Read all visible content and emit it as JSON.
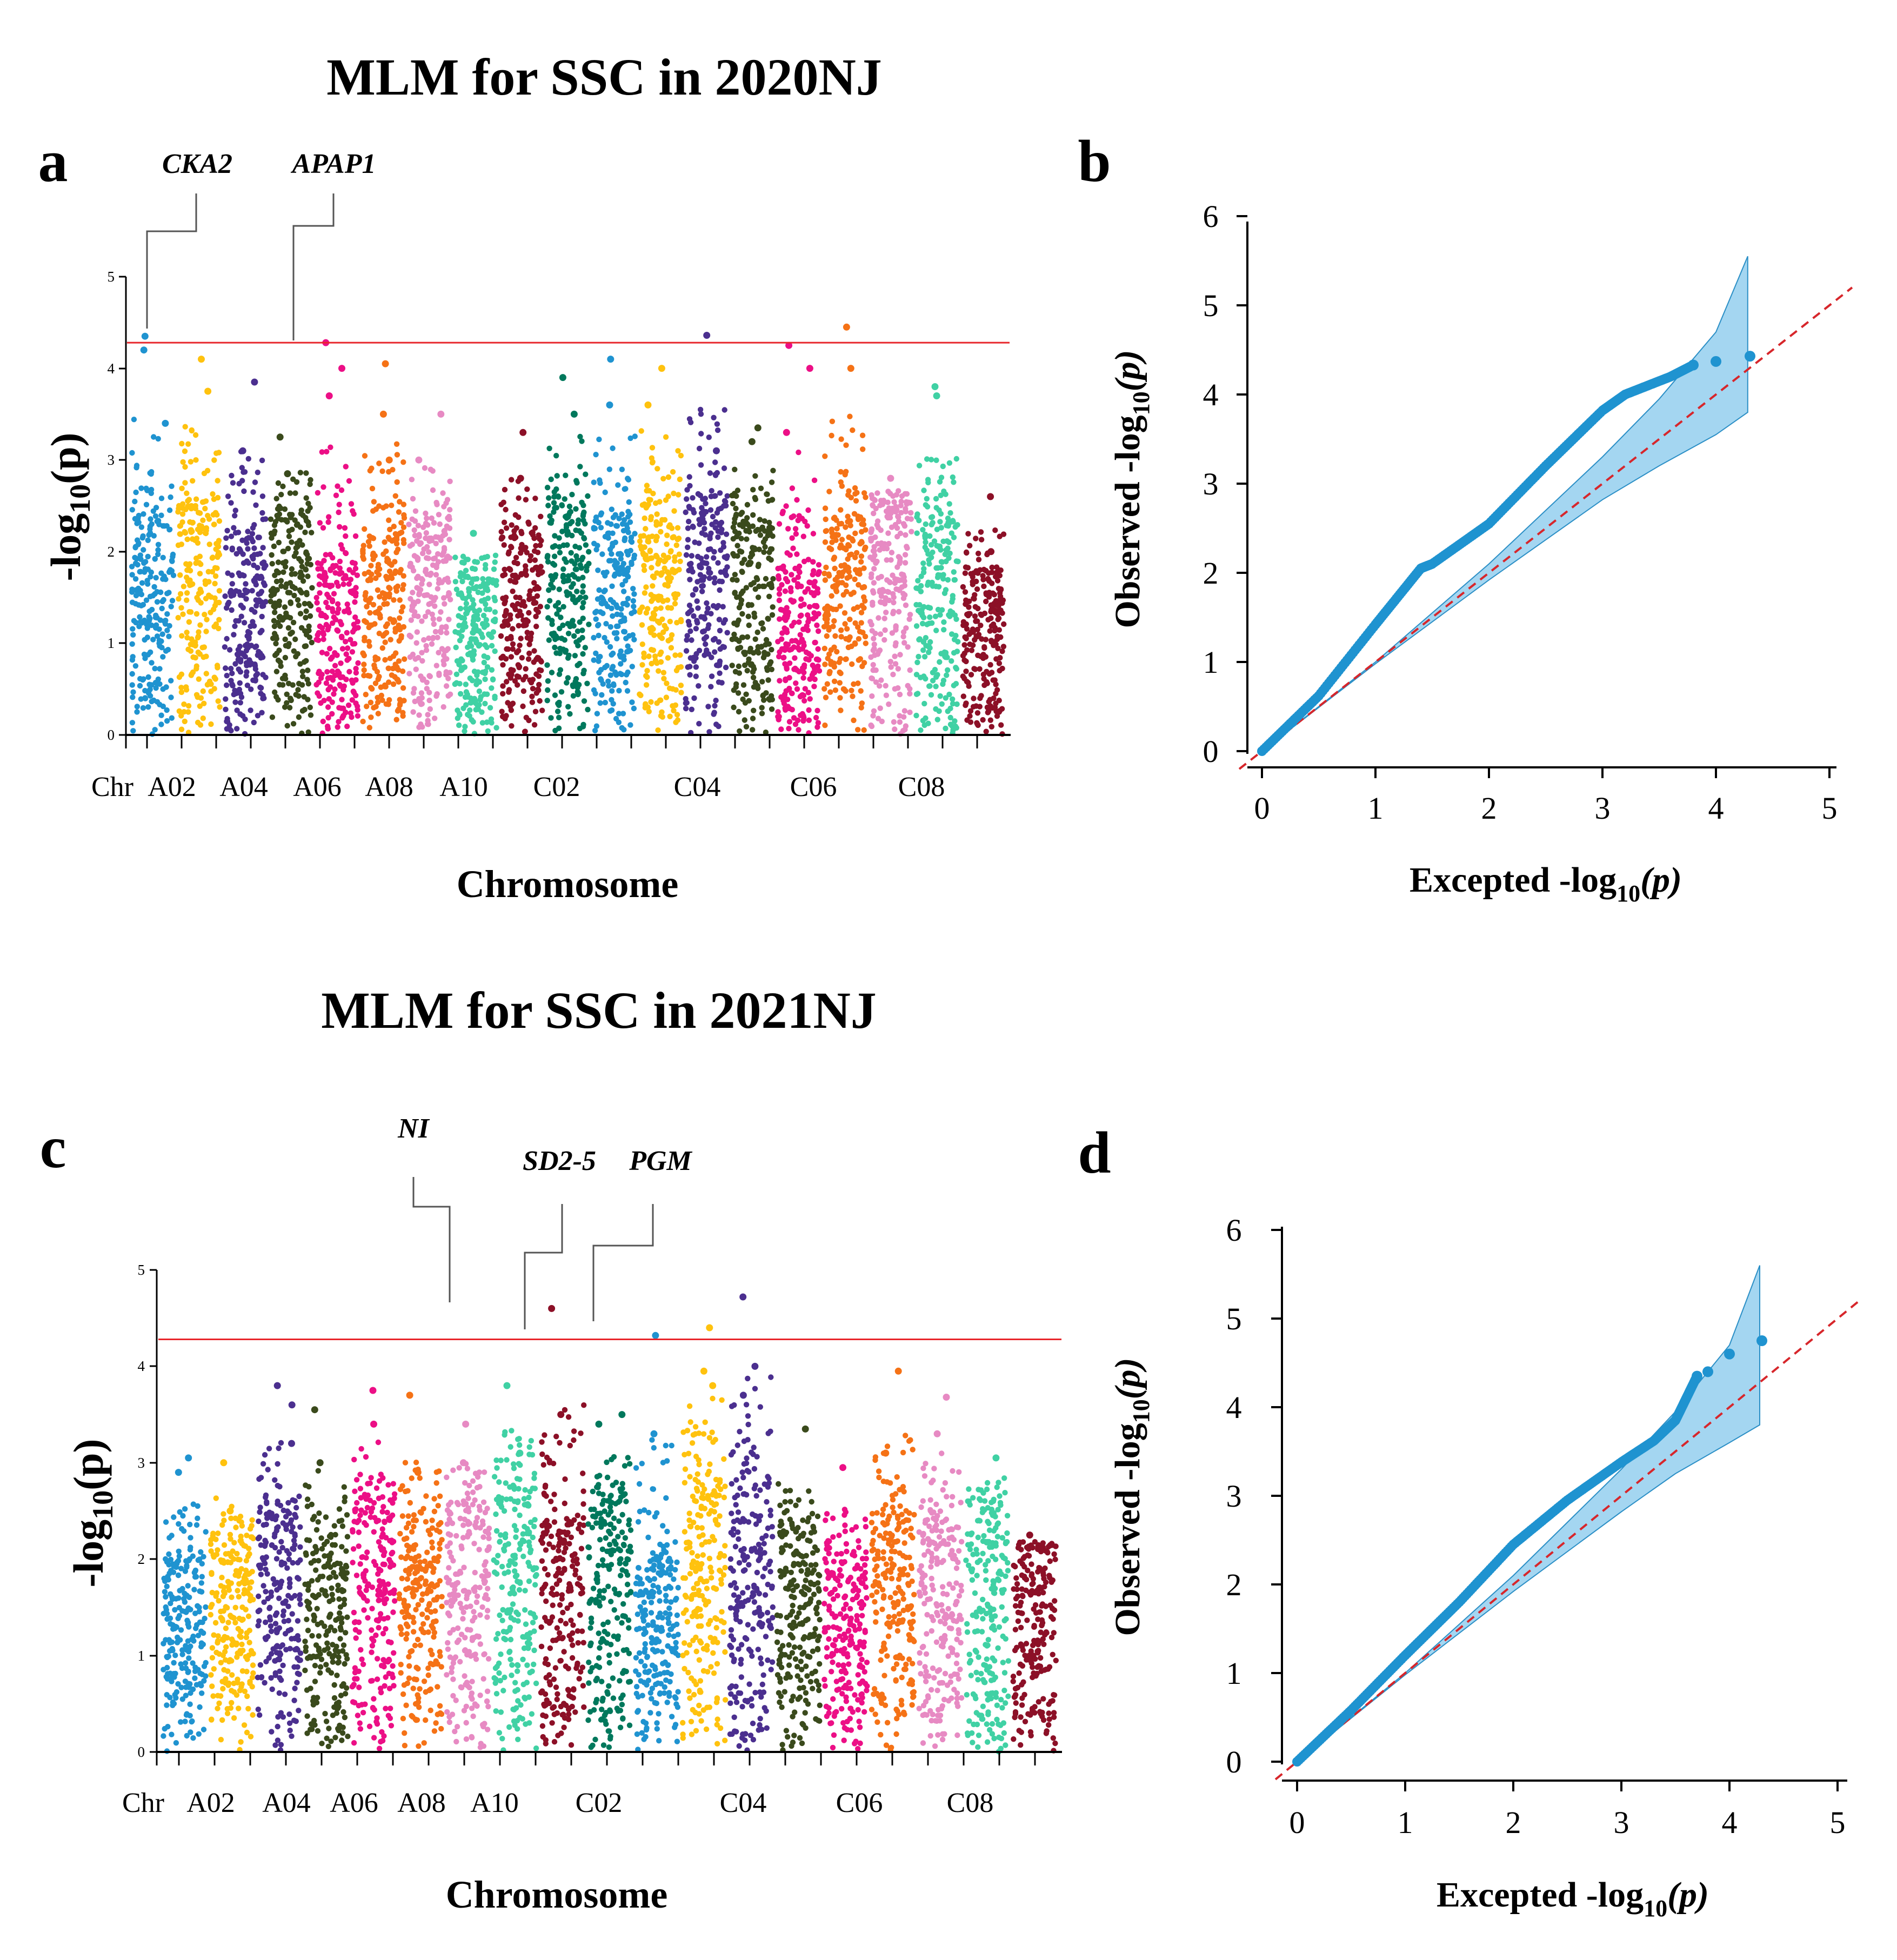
{
  "chart_data": [
    {
      "panel": "a",
      "type": "scatter",
      "subtype": "manhattan",
      "title": "MLM for SSC in 2020NJ",
      "xlabel": "Chromosome",
      "ylabel": "-log10(p)",
      "ylabel_base": "-log",
      "ylabel_sub": "10",
      "ylabel_arg": "(p)",
      "ylim": [
        0,
        5
      ],
      "yticks": [
        "0",
        "1",
        "2",
        "3",
        "4",
        "5"
      ],
      "x_first_label": "Chr",
      "xtick_labels": [
        "A02",
        "A04",
        "A06",
        "A08",
        "A10",
        "C02",
        "C04",
        "C06",
        "C08"
      ],
      "threshold": 4.28,
      "threshold_color": "#e8262b",
      "chromosomes": [
        {
          "name": "A01",
          "color": "#1f93d0",
          "base": 2.4,
          "peaks": [
            4.35,
            4.2,
            3.4
          ]
        },
        {
          "name": "A02",
          "color": "#ffc20e",
          "base": 2.5,
          "peaks": [
            4.1,
            3.75
          ]
        },
        {
          "name": "A03",
          "color": "#4b2f8f",
          "base": 2.2,
          "peaks": [
            3.85,
            3.1
          ]
        },
        {
          "name": "A04",
          "color": "#3a4a1c",
          "base": 2.4,
          "peaks": [
            3.25,
            2.85
          ]
        },
        {
          "name": "A05",
          "color": "#ec0f86",
          "base": 1.9,
          "peaks": [
            4.28,
            4.0,
            3.7
          ]
        },
        {
          "name": "A06",
          "color": "#f57216",
          "base": 2.2,
          "peaks": [
            4.05,
            3.5,
            3.0
          ]
        },
        {
          "name": "A07",
          "color": "#e78ac3",
          "base": 2.3,
          "peaks": [
            3.5,
            3.0
          ]
        },
        {
          "name": "A08",
          "color": "#40d1a4",
          "base": 1.7,
          "peaks": [
            2.2
          ]
        },
        {
          "name": "A09",
          "color": "#8c1027",
          "base": 2.2,
          "peaks": [
            3.3,
            2.8
          ]
        },
        {
          "name": "A10",
          "color": "#00785c",
          "base": 2.5,
          "peaks": [
            3.9,
            3.5
          ]
        },
        {
          "name": "C01",
          "color": "#1f93d0",
          "base": 2.4,
          "peaks": [
            4.1,
            3.6
          ]
        },
        {
          "name": "C02",
          "color": "#ffc20e",
          "base": 2.5,
          "peaks": [
            4.0,
            3.6
          ]
        },
        {
          "name": "C03",
          "color": "#4b2f8f",
          "base": 2.6,
          "peaks": [
            4.36,
            3.1
          ]
        },
        {
          "name": "C04",
          "color": "#3a4a1c",
          "base": 2.4,
          "peaks": [
            3.35,
            3.2
          ]
        },
        {
          "name": "C05",
          "color": "#ec0f86",
          "base": 1.9,
          "peaks": [
            4.25,
            4.0,
            3.3
          ]
        },
        {
          "name": "C06",
          "color": "#f57216",
          "base": 2.4,
          "peaks": [
            4.45,
            4.0
          ]
        },
        {
          "name": "C07",
          "color": "#e78ac3",
          "base": 2.5,
          "peaks": [
            2.8
          ]
        },
        {
          "name": "C08",
          "color": "#40d1a4",
          "base": 2.4,
          "peaks": [
            3.8,
            3.7
          ]
        },
        {
          "name": "C09",
          "color": "#8c1027",
          "base": 1.8,
          "peaks": [
            2.6,
            2.0
          ]
        }
      ],
      "annotations": [
        {
          "gene": "CKA2",
          "chromosome": "A01",
          "value": 4.35
        },
        {
          "gene": "APAP1",
          "chromosome": "A05",
          "value": 4.28
        }
      ]
    },
    {
      "panel": "b",
      "type": "scatter",
      "subtype": "qq",
      "xlabel": "Excepted -log10(p)",
      "xlabel_base": "Excepted -log",
      "xlabel_sub": "10",
      "xlabel_arg": "(p)",
      "ylabel": "Observed -log10(p)",
      "ylabel_base": "Observed -log",
      "ylabel_sub": "10",
      "ylabel_arg": "(p)",
      "xlim": [
        0,
        5
      ],
      "ylim": [
        0,
        6
      ],
      "xticks": [
        "0",
        "1",
        "2",
        "3",
        "4",
        "5"
      ],
      "yticks": [
        "0",
        "1",
        "2",
        "3",
        "4",
        "5",
        "6"
      ],
      "point_color": "#1f93d0",
      "band_color": "#5ab4e5",
      "line_color": "#d7262b",
      "curve": [
        [
          0,
          0
        ],
        [
          0.5,
          0.62
        ],
        [
          1.0,
          1.42
        ],
        [
          1.4,
          2.05
        ],
        [
          1.5,
          2.1
        ],
        [
          2.0,
          2.55
        ],
        [
          2.5,
          3.2
        ],
        [
          3.0,
          3.82
        ],
        [
          3.2,
          4.0
        ],
        [
          3.6,
          4.2
        ],
        [
          3.8,
          4.33
        ],
        [
          4.0,
          4.37
        ],
        [
          4.3,
          4.43
        ]
      ],
      "band_upper": [
        [
          0,
          0
        ],
        [
          1,
          1.0
        ],
        [
          2,
          2.1
        ],
        [
          3,
          3.3
        ],
        [
          3.5,
          3.95
        ],
        [
          4.0,
          4.7
        ],
        [
          4.28,
          5.55
        ]
      ],
      "band_lower": [
        [
          0,
          0
        ],
        [
          1,
          0.98
        ],
        [
          2,
          1.92
        ],
        [
          3,
          2.82
        ],
        [
          3.5,
          3.2
        ],
        [
          4.0,
          3.55
        ],
        [
          4.28,
          3.8
        ]
      ]
    },
    {
      "panel": "c",
      "type": "scatter",
      "subtype": "manhattan",
      "title": "MLM for SSC in 2021NJ",
      "xlabel": "Chromosome",
      "ylabel": "-log10(p)",
      "ylabel_base": "-log",
      "ylabel_sub": "10",
      "ylabel_arg": "(p)",
      "ylim": [
        0,
        5
      ],
      "yticks": [
        "0",
        "1",
        "2",
        "3",
        "4",
        "5"
      ],
      "x_first_label": "Chr",
      "xtick_labels": [
        "A02",
        "A04",
        "A06",
        "A08",
        "A10",
        "C02",
        "C04",
        "C06",
        "C08"
      ],
      "threshold": 4.28,
      "threshold_color": "#e8262b",
      "chromosomes": [
        {
          "name": "A01",
          "color": "#1f93d0",
          "base": 2.0,
          "peaks": [
            3.05,
            2.9
          ]
        },
        {
          "name": "A02",
          "color": "#ffc20e",
          "base": 2.2,
          "peaks": [
            3.0,
            2.5
          ]
        },
        {
          "name": "A03",
          "color": "#4b2f8f",
          "base": 2.5,
          "peaks": [
            3.8,
            3.6,
            3.2
          ]
        },
        {
          "name": "A04",
          "color": "#3a4a1c",
          "base": 2.2,
          "peaks": [
            3.55,
            3.0
          ]
        },
        {
          "name": "A05",
          "color": "#ec0f86",
          "base": 2.6,
          "peaks": [
            3.75,
            3.4
          ]
        },
        {
          "name": "A06",
          "color": "#f57216",
          "base": 2.4,
          "peaks": [
            3.7,
            2.9
          ]
        },
        {
          "name": "A07",
          "color": "#e78ac3",
          "base": 2.5,
          "peaks": [
            3.4,
            3.0
          ]
        },
        {
          "name": "A08",
          "color": "#40d1a4",
          "base": 2.8,
          "peaks": [
            3.8,
            3.1
          ]
        },
        {
          "name": "A09",
          "color": "#8c1027",
          "base": 2.4,
          "peaks": [
            4.6,
            3.5
          ]
        },
        {
          "name": "A10",
          "color": "#00785c",
          "base": 2.6,
          "peaks": [
            3.5,
            3.4
          ]
        },
        {
          "name": "C01",
          "color": "#1f93d0",
          "base": 2.0,
          "peaks": [
            4.32,
            3.3
          ]
        },
        {
          "name": "C02",
          "color": "#ffc20e",
          "base": 2.8,
          "peaks": [
            4.4,
            3.95,
            3.8
          ]
        },
        {
          "name": "C03",
          "color": "#4b2f8f",
          "base": 2.9,
          "peaks": [
            4.72,
            4.0,
            3.7
          ]
        },
        {
          "name": "C04",
          "color": "#3a4a1c",
          "base": 2.3,
          "peaks": [
            3.35
          ]
        },
        {
          "name": "C05",
          "color": "#ec0f86",
          "base": 2.0,
          "peaks": [
            2.95
          ]
        },
        {
          "name": "C06",
          "color": "#f57216",
          "base": 2.5,
          "peaks": [
            3.95,
            3.1
          ]
        },
        {
          "name": "C07",
          "color": "#e78ac3",
          "base": 2.4,
          "peaks": [
            3.68,
            3.3
          ]
        },
        {
          "name": "C08",
          "color": "#40d1a4",
          "base": 2.6,
          "peaks": [
            3.05
          ]
        },
        {
          "name": "C09",
          "color": "#8c1027",
          "base": 2.1,
          "peaks": [
            2.25
          ]
        }
      ],
      "annotations": [
        {
          "gene": "NI",
          "chromosome": "A09",
          "value": 4.6
        },
        {
          "gene": "SD2-5",
          "chromosome": "C01",
          "value": 4.32
        },
        {
          "gene": "PGM",
          "chromosome": "C02",
          "value": 4.4
        }
      ]
    },
    {
      "panel": "d",
      "type": "scatter",
      "subtype": "qq",
      "xlabel": "Excepted -log10(p)",
      "xlabel_base": "Excepted -log",
      "xlabel_sub": "10",
      "xlabel_arg": "(p)",
      "ylabel": "Observed -log10(p)",
      "ylabel_base": "Observed -log",
      "ylabel_sub": "10",
      "ylabel_arg": "(p)",
      "xlim": [
        0,
        5
      ],
      "ylim": [
        0,
        6
      ],
      "xticks": [
        "0",
        "1",
        "2",
        "3",
        "4",
        "5"
      ],
      "yticks": [
        "0",
        "1",
        "2",
        "3",
        "4",
        "5",
        "6"
      ],
      "point_color": "#1f93d0",
      "band_color": "#5ab4e5",
      "line_color": "#d7262b",
      "curve": [
        [
          0,
          0
        ],
        [
          0.5,
          0.58
        ],
        [
          1.0,
          1.2
        ],
        [
          1.5,
          1.8
        ],
        [
          2.0,
          2.45
        ],
        [
          2.5,
          2.95
        ],
        [
          3.0,
          3.38
        ],
        [
          3.3,
          3.62
        ],
        [
          3.5,
          3.85
        ],
        [
          3.7,
          4.35
        ],
        [
          3.8,
          4.4
        ],
        [
          4.0,
          4.6
        ],
        [
          4.3,
          4.75
        ]
      ],
      "band_upper": [
        [
          0,
          0
        ],
        [
          1,
          1.0
        ],
        [
          2,
          2.1
        ],
        [
          3,
          3.3
        ],
        [
          3.5,
          3.95
        ],
        [
          4.0,
          4.7
        ],
        [
          4.28,
          5.6
        ]
      ],
      "band_lower": [
        [
          0,
          0
        ],
        [
          1,
          0.98
        ],
        [
          2,
          1.92
        ],
        [
          3,
          2.82
        ],
        [
          3.5,
          3.25
        ],
        [
          4.0,
          3.6
        ],
        [
          4.28,
          3.8
        ]
      ]
    }
  ]
}
